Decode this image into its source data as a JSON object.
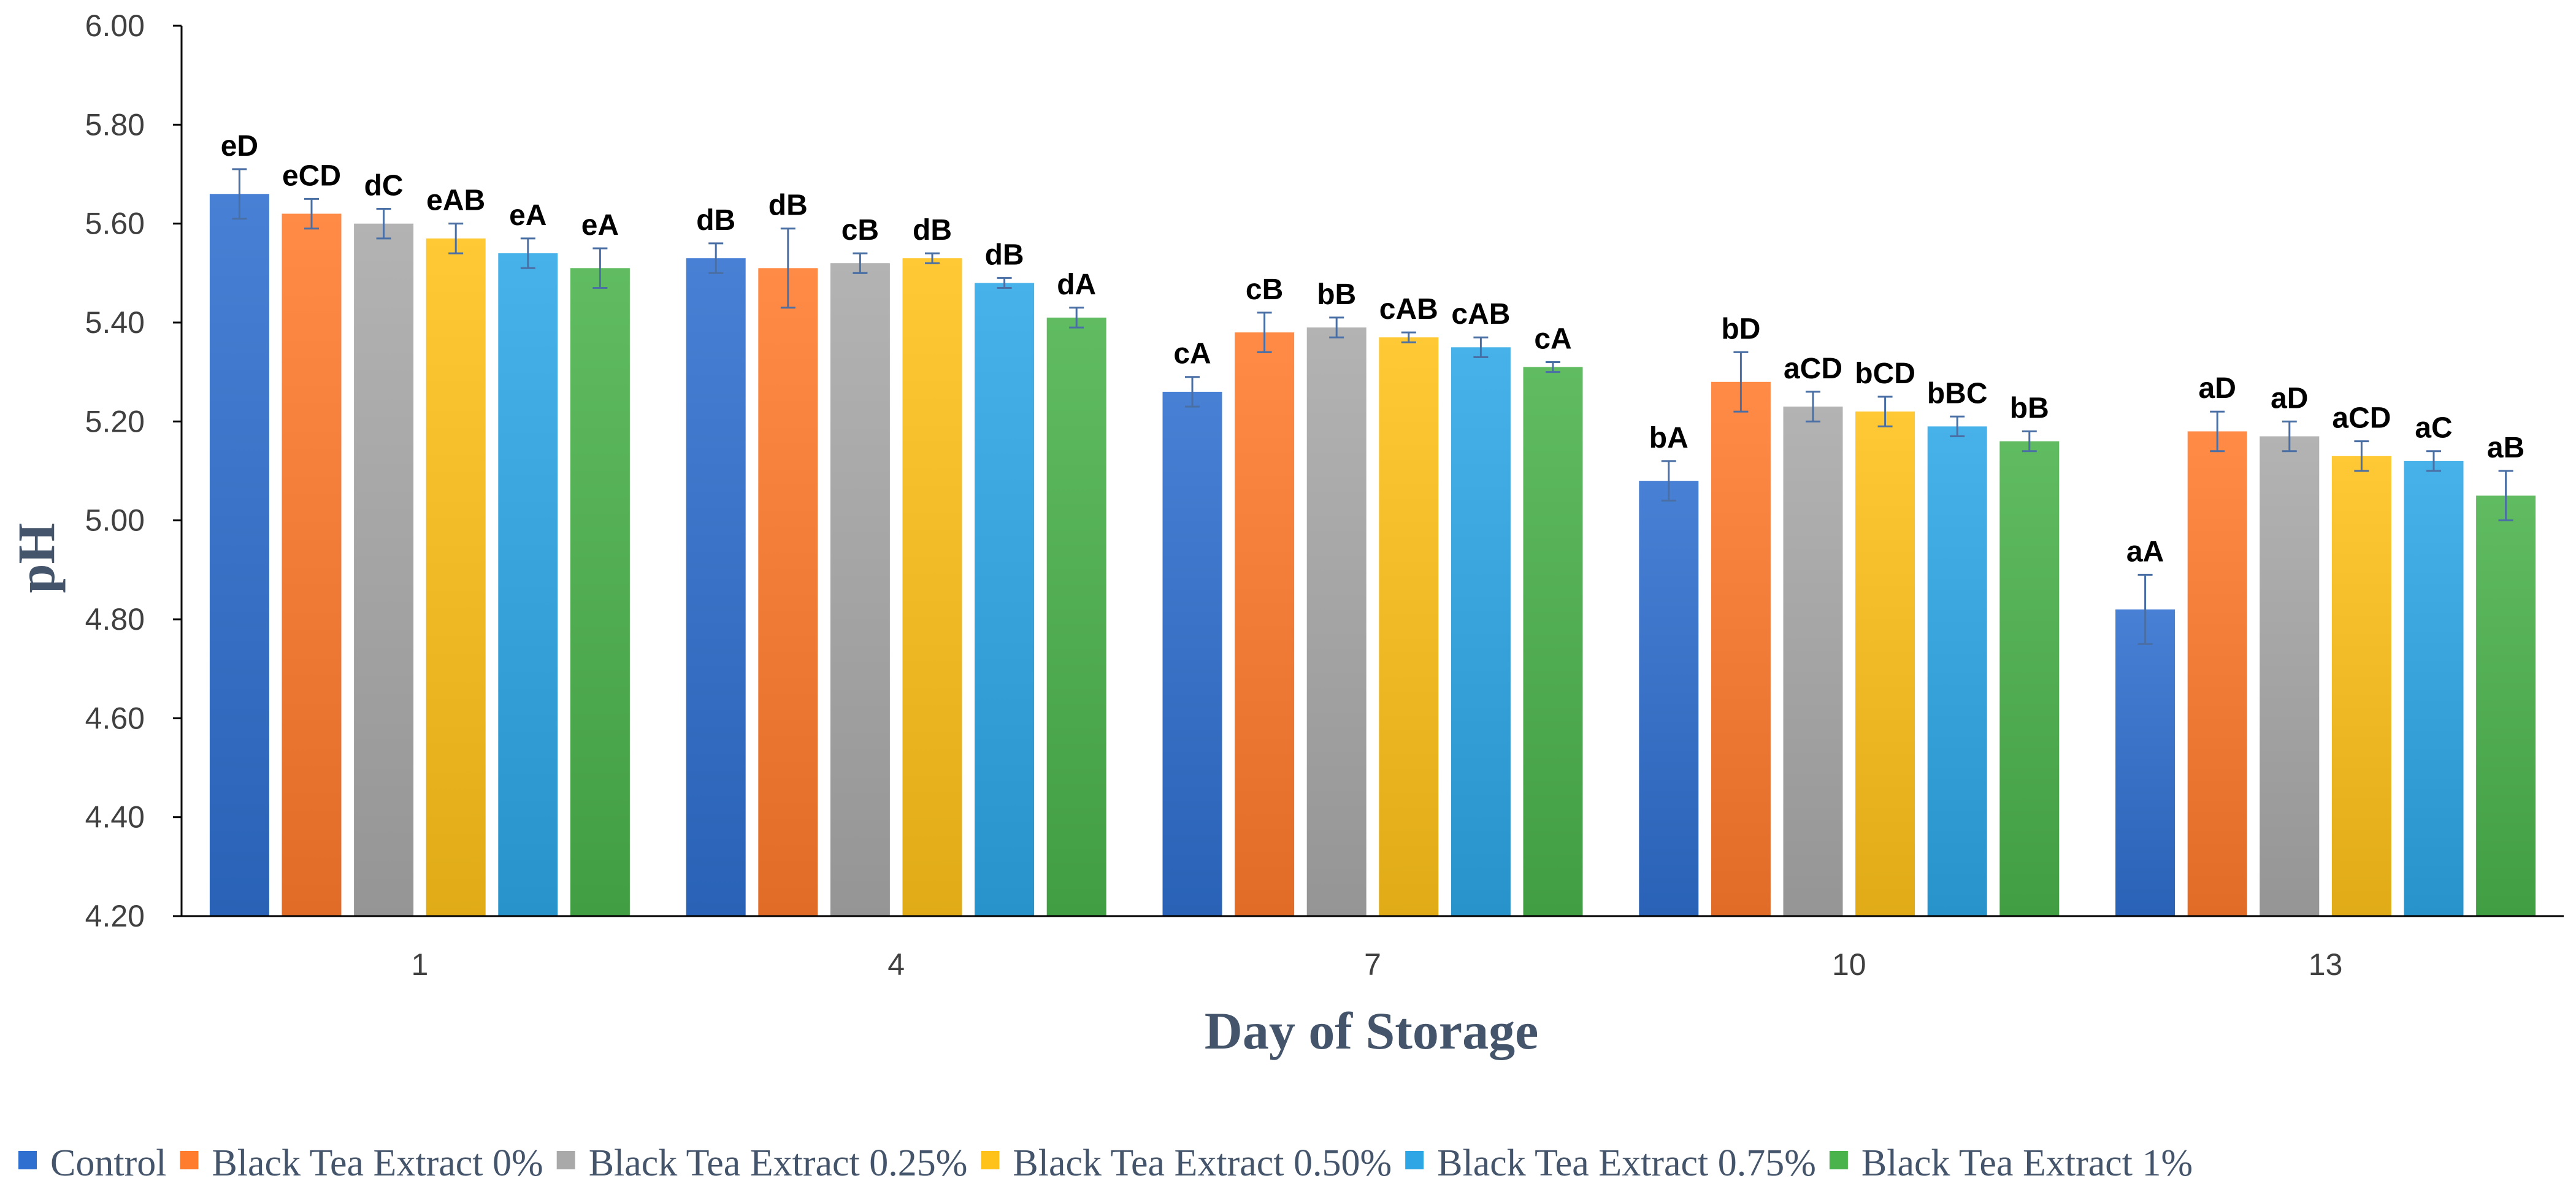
{
  "chart_data": {
    "type": "bar",
    "title": "",
    "xlabel": "Day of Storage",
    "ylabel": "pH",
    "ylim": [
      4.2,
      6.0
    ],
    "y_ticks": [
      "4.20",
      "4.40",
      "4.60",
      "4.80",
      "5.00",
      "5.20",
      "5.40",
      "5.60",
      "5.80",
      "6.00"
    ],
    "categories": [
      "1",
      "4",
      "7",
      "10",
      "13"
    ],
    "legend_position": "bottom",
    "series": [
      {
        "name": "Control",
        "color": "#2f6fcf",
        "values": [
          5.66,
          5.53,
          5.26,
          5.08,
          4.82
        ],
        "errors": [
          0.05,
          0.03,
          0.03,
          0.04,
          0.07
        ],
        "labels": [
          "eD",
          "dB",
          "cA",
          "bA",
          "aA"
        ]
      },
      {
        "name": "Black Tea Extract 0%",
        "color": "#ff7b2e",
        "values": [
          5.62,
          5.51,
          5.38,
          5.28,
          5.18
        ],
        "errors": [
          0.03,
          0.08,
          0.04,
          0.06,
          0.04
        ],
        "labels": [
          "eCD",
          "dB",
          "cB",
          "bD",
          "aD"
        ]
      },
      {
        "name": "Black Tea Extract 0.25%",
        "color": "#a9a9a9",
        "values": [
          5.6,
          5.52,
          5.39,
          5.23,
          5.17
        ],
        "errors": [
          0.03,
          0.02,
          0.02,
          0.03,
          0.03
        ],
        "labels": [
          "dC",
          "cB",
          "bB",
          "aCD",
          "aD"
        ]
      },
      {
        "name": "Black Tea Extract 0.50%",
        "color": "#ffc21a",
        "values": [
          5.57,
          5.53,
          5.37,
          5.22,
          5.13
        ],
        "errors": [
          0.03,
          0.01,
          0.01,
          0.03,
          0.03
        ],
        "labels": [
          "eAB",
          "dB",
          "cAB",
          "bCD",
          "aCD"
        ]
      },
      {
        "name": "Black Tea Extract 0.75%",
        "color": "#2ea6e6",
        "values": [
          5.54,
          5.48,
          5.35,
          5.19,
          5.12
        ],
        "errors": [
          0.03,
          0.01,
          0.02,
          0.02,
          0.02
        ],
        "labels": [
          "eA",
          "dB",
          "cAB",
          "bBC",
          "aC"
        ]
      },
      {
        "name": "Black Tea Extract 1%",
        "color": "#4bb34b",
        "values": [
          5.51,
          5.41,
          5.31,
          5.16,
          5.05
        ],
        "errors": [
          0.04,
          0.02,
          0.01,
          0.02,
          0.05
        ],
        "labels": [
          "eA",
          "dA",
          "cA",
          "bB",
          "aB"
        ]
      }
    ]
  }
}
